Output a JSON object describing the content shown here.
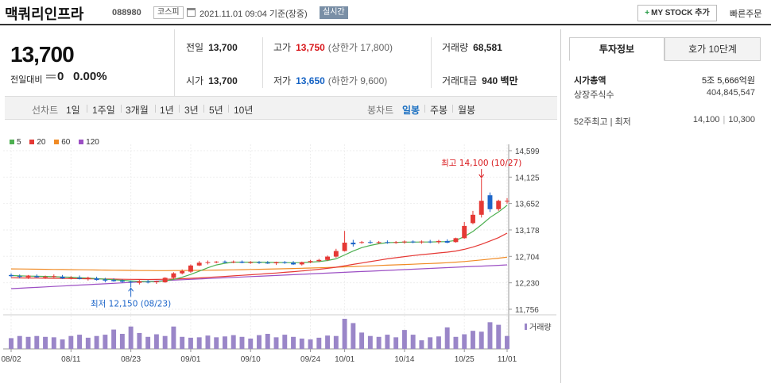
{
  "header": {
    "stock_name": "맥쿼리인프라",
    "stock_code": "088980",
    "market": "코스피",
    "datetime": "2021.11.01 09:04  기준(장중)",
    "realtime": "실시간",
    "mystock_label": "MY STOCK 추가",
    "quick_order": "빠른주문"
  },
  "summary": {
    "price": "13,700",
    "change_label": "전일대비",
    "change_value": "0",
    "change_pct": "0.00%"
  },
  "stats": {
    "prev_label": "전일",
    "prev_value": "13,700",
    "high_label": "고가",
    "high_value": "13,750",
    "high_sub": "(상한가 17,800)",
    "volume_label": "거래량",
    "volume_value": "68,581",
    "open_label": "시가",
    "open_value": "13,700",
    "low_label": "저가",
    "low_value": "13,650",
    "low_sub": "(하한가 9,600)",
    "amount_label": "거래대금",
    "amount_value": "940 백만"
  },
  "period_bar": {
    "line_chart_label": "선차트",
    "periods": [
      "1일",
      "1주일",
      "3개월",
      "1년",
      "3년",
      "5년",
      "10년"
    ],
    "candle_chart_label": "봉차트",
    "candle_periods": [
      "일봉",
      "주봉",
      "월봉"
    ],
    "active_candle": "일봉"
  },
  "right_panel": {
    "tab_invest": "투자정보",
    "tab_order": "호가 10단계",
    "market_cap_label": "시가총액",
    "market_cap_value": "5조 5,666억원",
    "shares_label": "상장주식수",
    "shares_value": "404,845,547",
    "range52_label": "52주최고  |  최저",
    "high52": "14,100",
    "low52": "10,300"
  },
  "legend": [
    {
      "label": "5",
      "color": "#4caf50"
    },
    {
      "label": "20",
      "color": "#e53935"
    },
    {
      "label": "60",
      "color": "#f08a24"
    },
    {
      "label": "120",
      "color": "#9c4fc4"
    }
  ],
  "chart_data": {
    "type": "candlestick",
    "y_ticks": [
      "14,599",
      "14,125",
      "13,652",
      "13,178",
      "12,704",
      "12,230",
      "11,756"
    ],
    "ylim": [
      11756,
      14599
    ],
    "x_ticks": [
      {
        "label": "08/02",
        "index": 0
      },
      {
        "label": "08/11",
        "index": 7
      },
      {
        "label": "08/23",
        "index": 14
      },
      {
        "label": "09/01",
        "index": 21
      },
      {
        "label": "09/10",
        "index": 28
      },
      {
        "label": "09/24",
        "index": 35
      },
      {
        "label": "10/01",
        "index": 39
      },
      {
        "label": "10/14",
        "index": 46
      },
      {
        "label": "10/25",
        "index": 53
      },
      {
        "label": "11/01",
        "index": 58
      }
    ],
    "max_annotation": "최고 14,100 (10/27)",
    "min_annotation": "최저 12,150 (08/23)",
    "volume_label": "거래량",
    "candles": [
      {
        "o": 12370,
        "h": 12400,
        "l": 12330,
        "c": 12350
      },
      {
        "o": 12350,
        "h": 12380,
        "l": 12310,
        "c": 12340
      },
      {
        "o": 12330,
        "h": 12370,
        "l": 12300,
        "c": 12360
      },
      {
        "o": 12350,
        "h": 12380,
        "l": 12320,
        "c": 12330
      },
      {
        "o": 12330,
        "h": 12360,
        "l": 12300,
        "c": 12340
      },
      {
        "o": 12340,
        "h": 12380,
        "l": 12320,
        "c": 12350
      },
      {
        "o": 12340,
        "h": 12370,
        "l": 12300,
        "c": 12310
      },
      {
        "o": 12310,
        "h": 12350,
        "l": 12290,
        "c": 12320
      },
      {
        "o": 12320,
        "h": 12360,
        "l": 12290,
        "c": 12300
      },
      {
        "o": 12300,
        "h": 12340,
        "l": 12270,
        "c": 12320
      },
      {
        "o": 12310,
        "h": 12340,
        "l": 12270,
        "c": 12280
      },
      {
        "o": 12290,
        "h": 12320,
        "l": 12240,
        "c": 12270
      },
      {
        "o": 12280,
        "h": 12310,
        "l": 12250,
        "c": 12260
      },
      {
        "o": 12270,
        "h": 12290,
        "l": 12230,
        "c": 12250
      },
      {
        "o": 12250,
        "h": 12270,
        "l": 12150,
        "c": 12240
      },
      {
        "o": 12230,
        "h": 12280,
        "l": 12200,
        "c": 12260
      },
      {
        "o": 12250,
        "h": 12280,
        "l": 12220,
        "c": 12240
      },
      {
        "o": 12240,
        "h": 12270,
        "l": 12210,
        "c": 12260
      },
      {
        "o": 12240,
        "h": 12330,
        "l": 12230,
        "c": 12320
      },
      {
        "o": 12320,
        "h": 12420,
        "l": 12300,
        "c": 12400
      },
      {
        "o": 12400,
        "h": 12470,
        "l": 12380,
        "c": 12440
      },
      {
        "o": 12430,
        "h": 12560,
        "l": 12410,
        "c": 12540
      },
      {
        "o": 12540,
        "h": 12620,
        "l": 12530,
        "c": 12590
      },
      {
        "o": 12590,
        "h": 12630,
        "l": 12560,
        "c": 12600
      },
      {
        "o": 12600,
        "h": 12620,
        "l": 12580,
        "c": 12610
      },
      {
        "o": 12610,
        "h": 12630,
        "l": 12580,
        "c": 12600
      },
      {
        "o": 12600,
        "h": 12630,
        "l": 12580,
        "c": 12610
      },
      {
        "o": 12610,
        "h": 12630,
        "l": 12580,
        "c": 12590
      },
      {
        "o": 12590,
        "h": 12620,
        "l": 12570,
        "c": 12600
      },
      {
        "o": 12600,
        "h": 12620,
        "l": 12570,
        "c": 12590
      },
      {
        "o": 12590,
        "h": 12620,
        "l": 12570,
        "c": 12580
      },
      {
        "o": 12580,
        "h": 12610,
        "l": 12550,
        "c": 12600
      },
      {
        "o": 12600,
        "h": 12620,
        "l": 12570,
        "c": 12590
      },
      {
        "o": 12590,
        "h": 12620,
        "l": 12550,
        "c": 12560
      },
      {
        "o": 12560,
        "h": 12610,
        "l": 12540,
        "c": 12600
      },
      {
        "o": 12600,
        "h": 12640,
        "l": 12580,
        "c": 12620
      },
      {
        "o": 12620,
        "h": 12660,
        "l": 12600,
        "c": 12640
      },
      {
        "o": 12640,
        "h": 12720,
        "l": 12620,
        "c": 12700
      },
      {
        "o": 12700,
        "h": 12840,
        "l": 12680,
        "c": 12800
      },
      {
        "o": 12800,
        "h": 13160,
        "l": 12790,
        "c": 12950
      },
      {
        "o": 12950,
        "h": 13000,
        "l": 12880,
        "c": 12920
      },
      {
        "o": 12950,
        "h": 12980,
        "l": 12930,
        "c": 12960
      },
      {
        "o": 12960,
        "h": 12990,
        "l": 12930,
        "c": 12950
      },
      {
        "o": 12950,
        "h": 12980,
        "l": 12930,
        "c": 12960
      },
      {
        "o": 12960,
        "h": 12990,
        "l": 12930,
        "c": 12950
      },
      {
        "o": 12950,
        "h": 12980,
        "l": 12930,
        "c": 12960
      },
      {
        "o": 12960,
        "h": 12990,
        "l": 12930,
        "c": 12970
      },
      {
        "o": 12970,
        "h": 12990,
        "l": 12940,
        "c": 12960
      },
      {
        "o": 12960,
        "h": 12990,
        "l": 12930,
        "c": 12970
      },
      {
        "o": 12970,
        "h": 13000,
        "l": 12940,
        "c": 12960
      },
      {
        "o": 12960,
        "h": 13000,
        "l": 12930,
        "c": 12980
      },
      {
        "o": 12980,
        "h": 13010,
        "l": 12940,
        "c": 12950
      },
      {
        "o": 12960,
        "h": 13040,
        "l": 12950,
        "c": 13030
      },
      {
        "o": 13030,
        "h": 13320,
        "l": 13020,
        "c": 13250
      },
      {
        "o": 13300,
        "h": 13520,
        "l": 13280,
        "c": 13450
      },
      {
        "o": 13450,
        "h": 14100,
        "l": 13400,
        "c": 13700
      },
      {
        "o": 13800,
        "h": 13850,
        "l": 13500,
        "c": 13550
      },
      {
        "o": 13550,
        "h": 13720,
        "l": 13520,
        "c": 13700
      },
      {
        "o": 13700,
        "h": 13750,
        "l": 13650,
        "c": 13700
      }
    ],
    "ma5": [
      12360,
      12355,
      12350,
      12348,
      12345,
      12340,
      12335,
      12330,
      12322,
      12315,
      12305,
      12295,
      12285,
      12275,
      12265,
      12255,
      12252,
      12252,
      12265,
      12290,
      12330,
      12380,
      12440,
      12500,
      12550,
      12580,
      12600,
      12600,
      12600,
      12600,
      12596,
      12594,
      12592,
      12590,
      12592,
      12600,
      12610,
      12630,
      12660,
      12730,
      12800,
      12860,
      12900,
      12930,
      12950,
      12955,
      12958,
      12960,
      12962,
      12962,
      12965,
      12968,
      12990,
      13060,
      13150,
      13270,
      13400,
      13500,
      13620
    ],
    "ma20": [
      12320,
      12318,
      12316,
      12314,
      12312,
      12310,
      12308,
      12306,
      12304,
      12302,
      12300,
      12298,
      12296,
      12294,
      12292,
      12290,
      12289,
      12290,
      12293,
      12297,
      12303,
      12310,
      12318,
      12327,
      12336,
      12345,
      12355,
      12365,
      12375,
      12385,
      12395,
      12406,
      12418,
      12430,
      12443,
      12457,
      12472,
      12490,
      12510,
      12535,
      12560,
      12585,
      12610,
      12635,
      12660,
      12680,
      12700,
      12718,
      12735,
      12750,
      12765,
      12780,
      12800,
      12830,
      12870,
      12920,
      12980,
      13040,
      13120
    ],
    "ma60": [
      12480,
      12478,
      12476,
      12474,
      12472,
      12470,
      12468,
      12466,
      12464,
      12462,
      12460,
      12458,
      12456,
      12454,
      12452,
      12450,
      12449,
      12448,
      12448,
      12449,
      12450,
      12452,
      12454,
      12456,
      12458,
      12460,
      12463,
      12466,
      12469,
      12472,
      12475,
      12479,
      12483,
      12487,
      12491,
      12495,
      12500,
      12505,
      12510,
      12516,
      12522,
      12528,
      12534,
      12540,
      12546,
      12552,
      12558,
      12564,
      12570,
      12576,
      12582,
      12590,
      12600,
      12612,
      12626,
      12640,
      12656,
      12672,
      12690
    ],
    "ma120": [
      12125,
      12133,
      12141,
      12149,
      12157,
      12165,
      12173,
      12181,
      12189,
      12197,
      12205,
      12213,
      12221,
      12229,
      12237,
      12245,
      12253,
      12261,
      12269,
      12277,
      12285,
      12292,
      12299,
      12306,
      12313,
      12320,
      12327,
      12334,
      12341,
      12348,
      12355,
      12362,
      12369,
      12376,
      12383,
      12390,
      12397,
      12404,
      12411,
      12418,
      12425,
      12432,
      12439,
      12446,
      12453,
      12460,
      12467,
      12474,
      12481,
      12488,
      12495,
      12502,
      12509,
      12516,
      12523,
      12530,
      12537,
      12544,
      12552
    ],
    "volume": [
      25,
      30,
      28,
      30,
      28,
      27,
      22,
      30,
      33,
      26,
      30,
      33,
      45,
      35,
      52,
      37,
      28,
      34,
      30,
      52,
      28,
      26,
      27,
      31,
      27,
      29,
      32,
      28,
      24,
      32,
      35,
      27,
      33,
      28,
      24,
      22,
      26,
      31,
      30,
      70,
      60,
      38,
      30,
      28,
      33,
      27,
      44,
      33,
      20,
      27,
      29,
      50,
      28,
      34,
      42,
      40,
      62,
      56,
      30
    ]
  }
}
